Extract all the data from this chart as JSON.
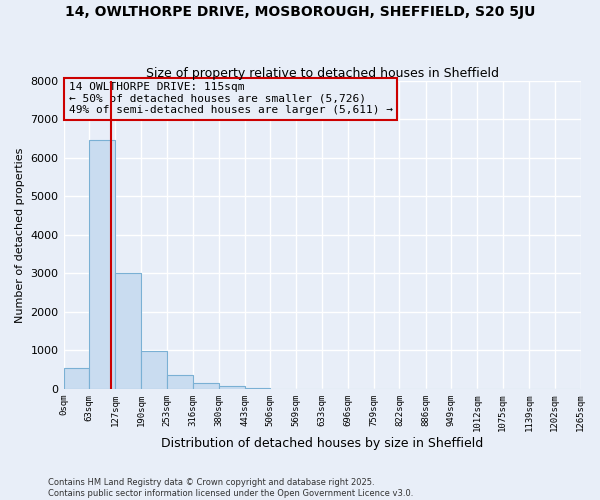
{
  "title": "14, OWLTHORPE DRIVE, MOSBOROUGH, SHEFFIELD, S20 5JU",
  "subtitle": "Size of property relative to detached houses in Sheffield",
  "xlabel": "Distribution of detached houses by size in Sheffield",
  "ylabel": "Number of detached properties",
  "bar_edges": [
    0,
    63,
    127,
    190,
    253,
    316,
    380,
    443,
    506,
    569,
    633,
    696,
    759,
    822,
    886,
    949,
    1012,
    1075,
    1139,
    1202,
    1265
  ],
  "bar_heights": [
    550,
    6470,
    3000,
    980,
    360,
    155,
    80,
    30,
    0,
    0,
    0,
    0,
    0,
    0,
    0,
    0,
    0,
    0,
    0,
    0
  ],
  "bar_color": "#c9dcf0",
  "bar_edge_color": "#7ab0d4",
  "vline_x": 115,
  "vline_color": "#cc0000",
  "annotation_box_color": "#cc0000",
  "annotation_title": "14 OWLTHORPE DRIVE: 115sqm",
  "annotation_line1": "← 50% of detached houses are smaller (5,726)",
  "annotation_line2": "49% of semi-detached houses are larger (5,611) →",
  "ylim": [
    0,
    8000
  ],
  "yticks": [
    0,
    1000,
    2000,
    3000,
    4000,
    5000,
    6000,
    7000,
    8000
  ],
  "background_color": "#e8eef8",
  "grid_color": "#ffffff",
  "footer_line1": "Contains HM Land Registry data © Crown copyright and database right 2025.",
  "footer_line2": "Contains public sector information licensed under the Open Government Licence v3.0."
}
